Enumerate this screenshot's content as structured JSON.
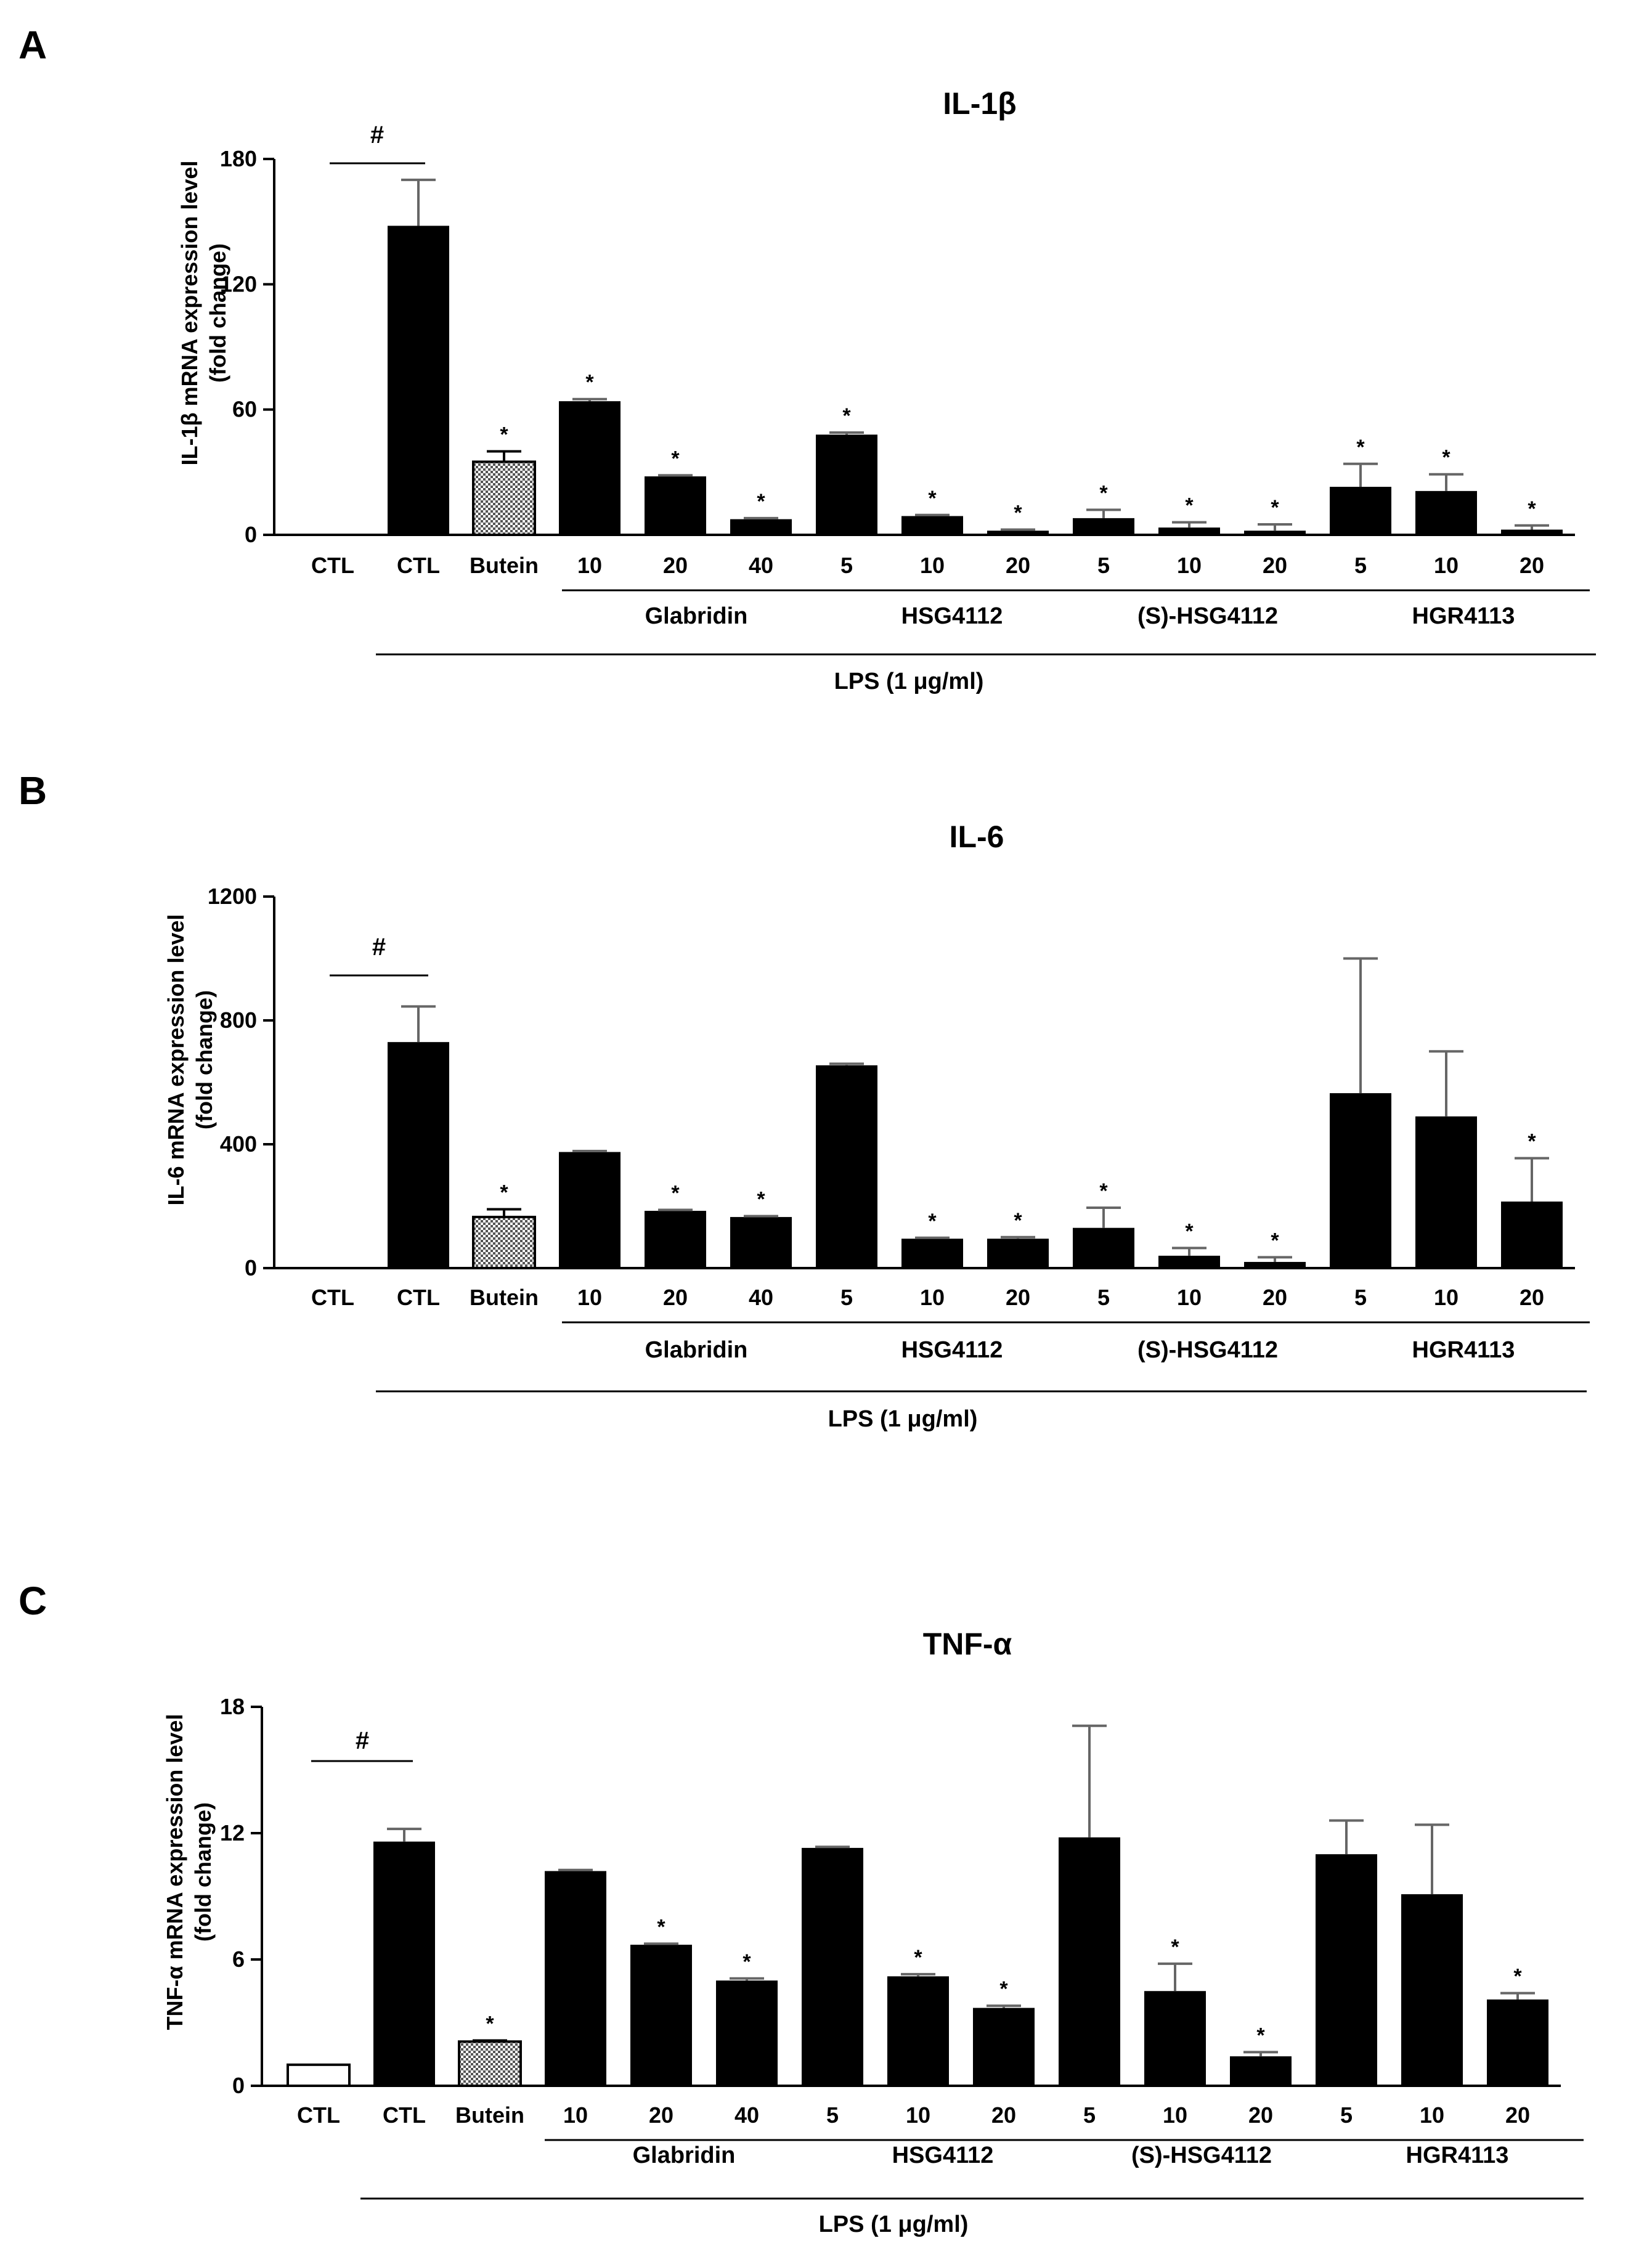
{
  "chart_data": [
    {
      "panel": "A",
      "type": "bar",
      "title": "IL-1β",
      "ylabel_line1": "IL-1β mRNA expression level",
      "ylabel_line2": "(fold change)",
      "ylim": [
        0,
        180
      ],
      "yticks": [
        0,
        60,
        120,
        180
      ],
      "categories": [
        "CTL",
        "CTL",
        "Butein",
        "10",
        "20",
        "40",
        "5",
        "10",
        "20",
        "5",
        "10",
        "20",
        "5",
        "10",
        "20"
      ],
      "values": [
        0,
        148,
        35,
        64,
        28,
        7.5,
        48,
        9,
        2,
        8,
        3.5,
        2,
        23,
        21,
        2.5
      ],
      "errors": [
        0,
        22,
        5,
        1,
        0.5,
        0.5,
        1,
        0.5,
        0.5,
        4,
        2.5,
        3,
        11,
        8,
        2
      ],
      "significance": [
        "",
        "",
        "*",
        "*",
        "*",
        "*",
        "*",
        "*",
        "*",
        "*",
        "*",
        "*",
        "*",
        "*",
        "*"
      ],
      "comparison_mark": "#",
      "group_labels": [
        "Glabridin",
        "HSG4112",
        "(S)-HSG4112",
        "HGR4113"
      ],
      "treatment_label": "LPS (1 μg/ml)"
    },
    {
      "panel": "B",
      "type": "bar",
      "title": "IL-6",
      "ylabel_line1": "IL-6 mRNA expression level",
      "ylabel_line2": "(fold change)",
      "ylim": [
        0,
        1200
      ],
      "yticks": [
        0,
        400,
        800,
        1200
      ],
      "categories": [
        "CTL",
        "CTL",
        "Butein",
        "10",
        "20",
        "40",
        "5",
        "10",
        "20",
        "5",
        "10",
        "20",
        "5",
        "10",
        "20"
      ],
      "values": [
        0,
        730,
        165,
        375,
        185,
        165,
        655,
        95,
        95,
        130,
        40,
        20,
        565,
        490,
        215
      ],
      "errors": [
        0,
        115,
        25,
        3,
        3,
        3,
        5,
        3,
        5,
        65,
        25,
        15,
        435,
        210,
        140
      ],
      "significance": [
        "",
        "",
        "*",
        "",
        "*",
        "*",
        "",
        "*",
        "*",
        "*",
        "*",
        "*",
        "",
        "",
        "*"
      ],
      "comparison_mark": "#",
      "group_labels": [
        "Glabridin",
        "HSG4112",
        "(S)-HSG4112",
        "HGR4113"
      ],
      "treatment_label": "LPS (1 μg/ml)"
    },
    {
      "panel": "C",
      "type": "bar",
      "title": "TNF-α",
      "ylabel_line1": "TNF-α mRNA expression level",
      "ylabel_line2": "(fold change)",
      "ylim": [
        0,
        18
      ],
      "yticks": [
        0,
        6,
        12,
        18
      ],
      "categories": [
        "CTL",
        "CTL",
        "Butein",
        "10",
        "20",
        "40",
        "5",
        "10",
        "20",
        "5",
        "10",
        "20",
        "5",
        "10",
        "20"
      ],
      "values": [
        1,
        11.6,
        2.1,
        10.2,
        6.7,
        5,
        11.3,
        5.2,
        3.7,
        11.8,
        4.5,
        1.4,
        11,
        9.1,
        4.1
      ],
      "errors": [
        0,
        0.6,
        0.05,
        0.05,
        0.05,
        0.1,
        0.05,
        0.1,
        0.1,
        5.3,
        1.3,
        0.2,
        1.6,
        3.3,
        0.3
      ],
      "significance": [
        "",
        "",
        "*",
        "",
        "*",
        "*",
        "",
        "*",
        "*",
        "",
        "*",
        "*",
        "",
        "",
        "*"
      ],
      "comparison_mark": "#",
      "group_labels": [
        "Glabridin",
        "HSG4112",
        "(S)-HSG4112",
        "HGR4113"
      ],
      "treatment_label": "LPS (1 μg/ml)"
    }
  ],
  "colors": {
    "bar": "#000000",
    "open": "#ffffff",
    "butein": "#9a9a9a",
    "axis": "#000000"
  }
}
